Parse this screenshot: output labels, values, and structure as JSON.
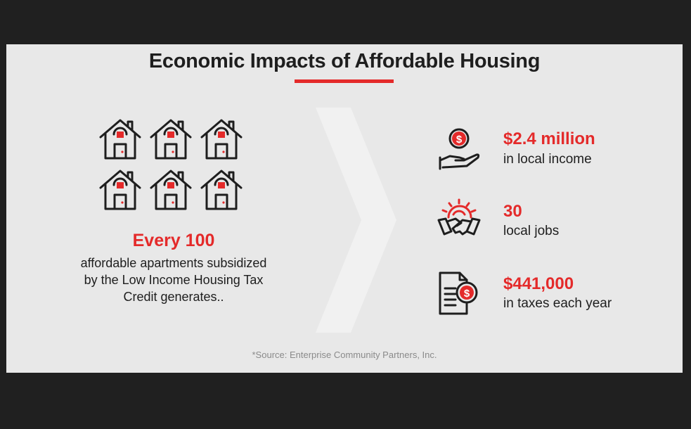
{
  "title": "Economic Impacts of Affordable Housing",
  "colors": {
    "accent": "#e42a2a",
    "text": "#1e1e1e",
    "background": "#e8e8e8",
    "frame": "#202020"
  },
  "houses_icon": "house-icon",
  "left": {
    "headline": "Every 100",
    "description_lines": [
      "affordable apartments subsidized",
      "by the Low Income Housing Tax",
      "Credit generates.."
    ]
  },
  "stats": [
    {
      "icon": "hand-coin-icon",
      "value": "$2.4 million",
      "label": "in local income"
    },
    {
      "icon": "handshake-gear-icon",
      "value": "30",
      "label": "local jobs"
    },
    {
      "icon": "tax-document-icon",
      "value": "$441,000",
      "label": "in taxes each year"
    }
  ],
  "source": "*Source: Enterprise Community Partners, Inc."
}
